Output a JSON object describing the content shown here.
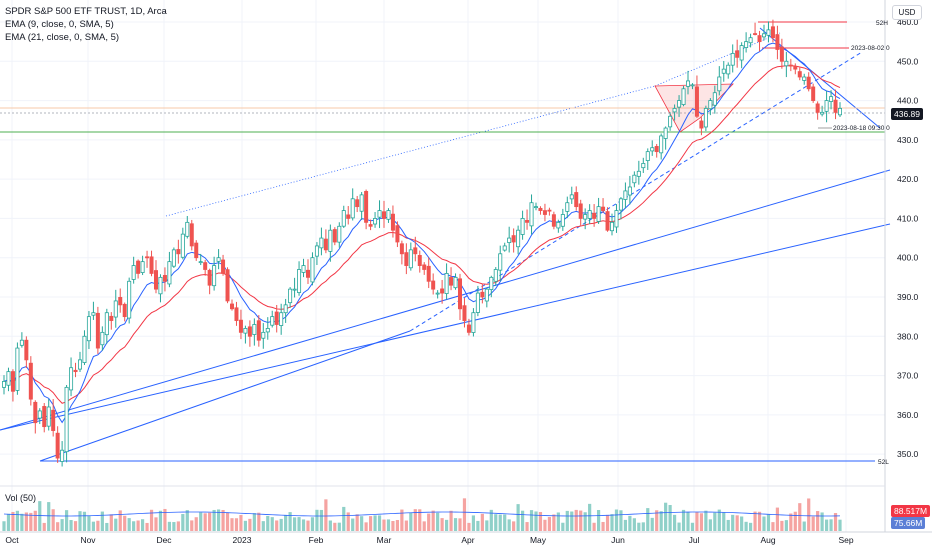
{
  "legend": {
    "title": "SPDR S&P 500 ETF TRUST, 1D, Arca",
    "ema9": "EMA (9, close, 0, SMA, 5)",
    "ema21": "EMA (21, close, 0, SMA, 5)",
    "volume": "Vol (50)"
  },
  "currency": "USD",
  "price_badge": "436.89",
  "volume_badges": {
    "current": "88.517M",
    "average": "75.66M"
  },
  "annotations": {
    "high52": "52H",
    "low52": "52L",
    "date_a": "2023-08-02 0",
    "date_b": "2023-08-18 09:30 0"
  },
  "colors": {
    "up": "#26a69a",
    "down": "#ef5350",
    "ema9": "#2962ff",
    "ema21": "#f23645",
    "trend": "#2962ff",
    "support": "#4caf50",
    "accent": "#f23645"
  },
  "chart_data": {
    "type": "candlestick",
    "title": "SPDR S&P 500 ETF TRUST, 1D, Arca",
    "x_ticks": [
      "Oct",
      "Nov",
      "Dec",
      "2023",
      "Feb",
      "Mar",
      "Apr",
      "May",
      "Jun",
      "Jul",
      "Aug",
      "Sep"
    ],
    "y_ticks": [
      350,
      360,
      370,
      380,
      390,
      400,
      410,
      420,
      430,
      440,
      450,
      460
    ],
    "ylim": [
      345,
      462
    ],
    "start_date": "2022-09-26",
    "closes": [
      368.5,
      371,
      366,
      377,
      379,
      374,
      364,
      358,
      361,
      357,
      362,
      356,
      349,
      351,
      367,
      372,
      371,
      374,
      380,
      385,
      386,
      377,
      381,
      386,
      384,
      389,
      388,
      385,
      394,
      398,
      396,
      399,
      400,
      396,
      392,
      395,
      394,
      399,
      402,
      401,
      406,
      409,
      403,
      400,
      399,
      397,
      393,
      398,
      400,
      396,
      389,
      387,
      384,
      381,
      382,
      380,
      383,
      379,
      381,
      382,
      385,
      383,
      386,
      388,
      392,
      392,
      397,
      398,
      395,
      400,
      403,
      405,
      402,
      407,
      404,
      408,
      412,
      410,
      415,
      413,
      416,
      409,
      408,
      410,
      412,
      410,
      412,
      407,
      404,
      401,
      398,
      402,
      401,
      398,
      397,
      394,
      392,
      391,
      391,
      396,
      393,
      395,
      387,
      384,
      381,
      386,
      391,
      390,
      392,
      395,
      397,
      401,
      403,
      405,
      404,
      407,
      410,
      409,
      414,
      413,
      412,
      411,
      412,
      408,
      409,
      411,
      414,
      416,
      413,
      410,
      411,
      412,
      410,
      413,
      412,
      407,
      409,
      412,
      415,
      417,
      418,
      421,
      422,
      424,
      427,
      428,
      427,
      431,
      433,
      436,
      438,
      440,
      443,
      445,
      444,
      436,
      433,
      438,
      440,
      442,
      446,
      448,
      449,
      452,
      451,
      454,
      455,
      456,
      457,
      455,
      457,
      458,
      456,
      453,
      450,
      450,
      449,
      448,
      446,
      446,
      443,
      440,
      437,
      437,
      440,
      441,
      437,
      438
    ]
  }
}
